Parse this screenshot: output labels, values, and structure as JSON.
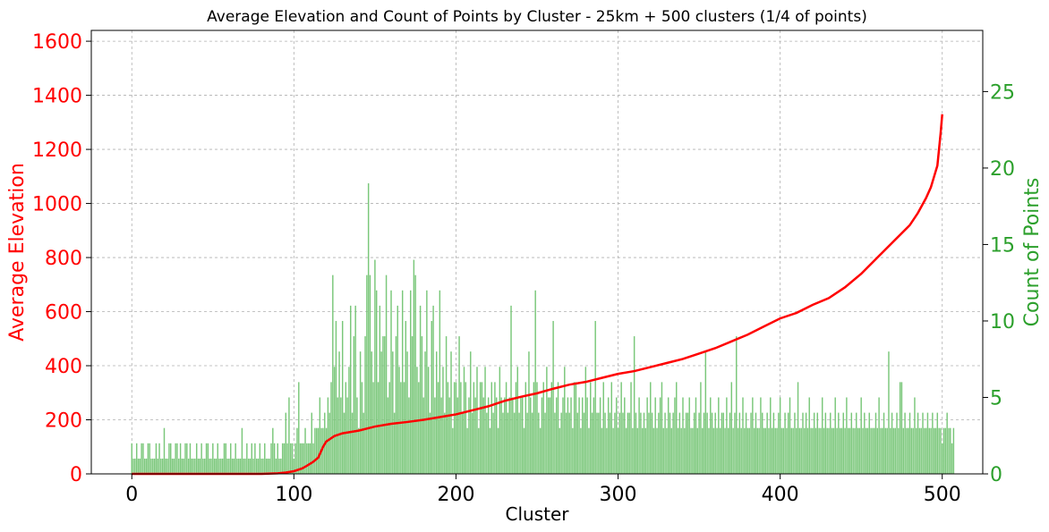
{
  "chart_data": {
    "type": "bar",
    "title": "Average Elevation and Count of Points by Cluster - 25km + 500 clusters (1/4 of points)",
    "xlabel": "Cluster",
    "ylabel_left": "Average Elevation",
    "ylabel_right": "Count of Points",
    "xlim": [
      -25,
      525
    ],
    "ylim_left": [
      0,
      1640
    ],
    "ylim_right": [
      0,
      29
    ],
    "x_ticks": [
      0,
      100,
      200,
      300,
      400,
      500
    ],
    "y_left_ticks": [
      0,
      200,
      400,
      600,
      800,
      1000,
      1200,
      1400,
      1600
    ],
    "y_right_ticks": [
      0,
      5,
      10,
      15,
      20,
      25
    ],
    "grid": true,
    "colors": {
      "elevation": "#ff0000",
      "count": "#2ca02c",
      "bar_fill": "#7ac77a"
    },
    "series": [
      {
        "kind": "line",
        "axis": "left",
        "x": [
          0,
          80,
          90,
          95,
          100,
          105,
          108,
          112,
          115,
          118,
          120,
          125,
          130,
          140,
          150,
          160,
          170,
          180,
          190,
          200,
          210,
          220,
          230,
          240,
          250,
          260,
          270,
          280,
          290,
          300,
          310,
          320,
          330,
          340,
          350,
          360,
          370,
          380,
          390,
          400,
          410,
          420,
          430,
          440,
          450,
          460,
          470,
          480,
          485,
          490,
          493,
          495,
          497,
          498,
          499,
          500
        ],
        "values": [
          0,
          0,
          2,
          5,
          10,
          20,
          30,
          45,
          60,
          100,
          120,
          140,
          150,
          160,
          175,
          185,
          192,
          200,
          210,
          220,
          235,
          250,
          270,
          285,
          298,
          315,
          330,
          340,
          355,
          370,
          380,
          395,
          410,
          425,
          445,
          465,
          490,
          515,
          545,
          575,
          595,
          625,
          650,
          690,
          740,
          800,
          860,
          920,
          965,
          1020,
          1060,
          1100,
          1140,
          1200,
          1260,
          1330
        ]
      },
      {
        "kind": "bar",
        "axis": "right",
        "x_start": 0,
        "values": [
          2,
          1,
          1,
          2,
          1,
          1,
          2,
          2,
          1,
          1,
          2,
          2,
          1,
          1,
          1,
          2,
          1,
          2,
          1,
          1,
          3,
          1,
          1,
          2,
          2,
          1,
          1,
          2,
          2,
          1,
          2,
          1,
          1,
          2,
          2,
          1,
          2,
          1,
          1,
          1,
          2,
          1,
          1,
          2,
          1,
          1,
          2,
          2,
          1,
          1,
          2,
          1,
          1,
          2,
          1,
          1,
          1,
          2,
          2,
          1,
          1,
          2,
          1,
          1,
          2,
          1,
          1,
          1,
          3,
          1,
          1,
          2,
          1,
          1,
          2,
          1,
          2,
          1,
          1,
          2,
          1,
          1,
          2,
          1,
          1,
          1,
          2,
          3,
          2,
          1,
          2,
          1,
          1,
          2,
          2,
          4,
          2,
          5,
          2,
          2,
          1,
          2,
          3,
          6,
          2,
          2,
          2,
          3,
          2,
          2,
          2,
          4,
          2,
          3,
          3,
          3,
          5,
          3,
          3,
          4,
          3,
          5,
          4,
          6,
          13,
          7,
          10,
          5,
          8,
          5,
          10,
          4,
          6,
          5,
          7,
          11,
          4,
          9,
          11,
          5,
          3,
          8,
          6,
          4,
          9,
          13,
          19,
          13,
          8,
          6,
          14,
          12,
          6,
          11,
          8,
          9,
          9,
          13,
          5,
          6,
          12,
          8,
          4,
          9,
          11,
          7,
          6,
          12,
          6,
          10,
          8,
          5,
          12,
          9,
          14,
          13,
          7,
          6,
          11,
          9,
          5,
          8,
          12,
          7,
          4,
          10,
          11,
          5,
          8,
          6,
          12,
          5,
          7,
          4,
          9,
          6,
          5,
          8,
          3,
          6,
          6,
          5,
          9,
          6,
          4,
          7,
          6,
          3,
          5,
          8,
          4,
          6,
          5,
          7,
          3,
          6,
          6,
          5,
          7,
          4,
          5,
          3,
          6,
          4,
          6,
          5,
          3,
          7,
          5,
          4,
          5,
          6,
          4,
          5,
          11,
          5,
          4,
          6,
          7,
          4,
          5,
          5,
          3,
          6,
          4,
          8,
          5,
          4,
          6,
          12,
          6,
          4,
          3,
          5,
          6,
          4,
          7,
          5,
          5,
          6,
          10,
          4,
          5,
          6,
          3,
          4,
          5,
          7,
          4,
          5,
          4,
          5,
          3,
          6,
          6,
          4,
          5,
          3,
          5,
          4,
          7,
          5,
          3,
          6,
          4,
          5,
          10,
          4,
          4,
          5,
          3,
          6,
          4,
          3,
          5,
          4,
          6,
          3,
          4,
          5,
          3,
          4,
          6,
          4,
          5,
          3,
          4,
          4,
          6,
          3,
          9,
          4,
          3,
          5,
          4,
          3,
          4,
          3,
          5,
          4,
          6,
          4,
          3,
          5,
          3,
          4,
          5,
          6,
          3,
          4,
          3,
          5,
          4,
          3,
          4,
          5,
          6,
          3,
          4,
          3,
          5,
          3,
          4,
          4,
          5,
          3,
          3,
          4,
          5,
          3,
          4,
          6,
          3,
          4,
          8,
          4,
          3,
          5,
          4,
          3,
          4,
          3,
          5,
          3,
          4,
          4,
          3,
          5,
          3,
          4,
          6,
          3,
          4,
          9,
          3,
          4,
          3,
          5,
          3,
          4,
          3,
          3,
          4,
          5,
          3,
          4,
          3,
          3,
          5,
          4,
          3,
          3,
          4,
          3,
          5,
          3,
          4,
          3,
          3,
          4,
          5,
          3,
          3,
          4,
          3,
          4,
          5,
          3,
          3,
          4,
          3,
          6,
          3,
          3,
          4,
          3,
          4,
          3,
          5,
          3,
          3,
          4,
          3,
          4,
          3,
          3,
          5,
          3,
          4,
          3,
          3,
          4,
          3,
          3,
          5,
          3,
          4,
          3,
          3,
          4,
          3,
          5,
          3,
          3,
          4,
          3,
          3,
          4,
          3,
          3,
          5,
          3,
          4,
          3,
          3,
          4,
          3,
          3,
          3,
          4,
          3,
          5,
          3,
          3,
          4,
          3,
          3,
          8,
          3,
          4,
          3,
          3,
          4,
          3,
          6,
          6,
          3,
          4,
          3,
          3,
          4,
          3,
          3,
          5,
          3,
          4,
          3,
          3,
          4,
          3,
          3,
          4,
          3,
          3,
          4,
          3,
          3,
          4,
          3,
          3,
          2,
          3,
          3,
          4,
          3,
          3,
          2,
          3
        ]
      }
    ]
  }
}
